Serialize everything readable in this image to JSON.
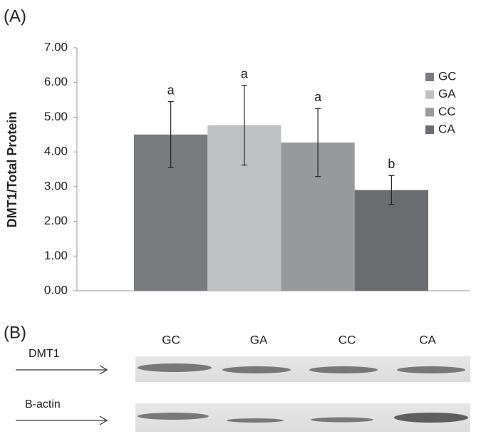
{
  "chart_data": {
    "type": "bar",
    "title": "(A)",
    "y_label": "DMT1/Total Protein",
    "categories": [
      null
    ],
    "series": [
      {
        "name": "GC",
        "color": "#7a7b7e",
        "values": [
          4.5
        ],
        "errors": [
          0.95
        ],
        "annotation": "a"
      },
      {
        "name": "GA",
        "color": "#bfc0c2",
        "values": [
          4.77
        ],
        "errors": [
          1.15
        ],
        "annotation": "a"
      },
      {
        "name": "CC",
        "color": "#98999b",
        "values": [
          4.27
        ],
        "errors": [
          0.98
        ],
        "annotation": "a"
      },
      {
        "name": "CA",
        "color": "#6b6c70",
        "values": [
          2.9
        ],
        "errors": [
          0.42
        ],
        "annotation": "b"
      }
    ],
    "ylim": [
      0,
      7
    ],
    "yticks": [
      {
        "value": 0,
        "label": "0.00"
      },
      {
        "value": 1,
        "label": "1.00"
      },
      {
        "value": 2,
        "label": "2.00"
      },
      {
        "value": 3,
        "label": "3.00"
      },
      {
        "value": 4,
        "label": "4.00"
      },
      {
        "value": 5,
        "label": "5.00"
      },
      {
        "value": 6,
        "label": "6.00"
      },
      {
        "value": 7,
        "label": "7.00"
      }
    ],
    "grid": false,
    "legend": "top-right"
  },
  "blot": {
    "label": "(B)",
    "lanes": [
      "GC",
      "GA",
      "CC",
      "CA"
    ],
    "rows": [
      "DMT1",
      "B-actin"
    ]
  }
}
